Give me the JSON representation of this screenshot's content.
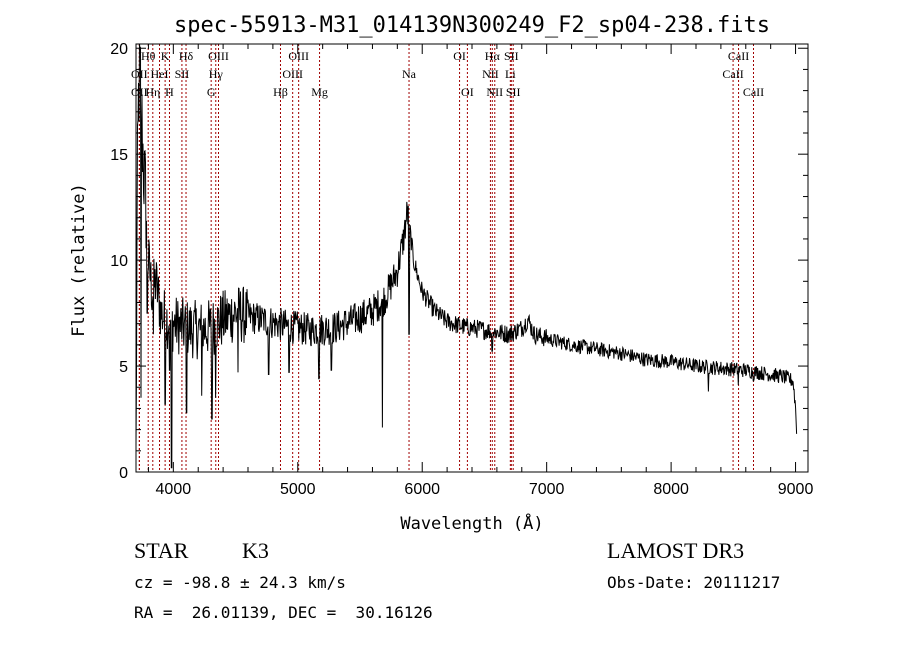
{
  "chart_data": {
    "type": "line",
    "title": "spec-55913-M31_014139N300249_F2_sp04-238.fits",
    "xlabel": "Wavelength (Å)",
    "ylabel": "Flux (relative)",
    "xlim": [
      3700,
      9100
    ],
    "ylim": [
      0,
      20.2
    ],
    "xticks": [
      4000,
      5000,
      6000,
      7000,
      8000,
      9000
    ],
    "yticks": [
      0,
      5,
      10,
      15,
      20
    ],
    "grid": false,
    "spectrum_anchors": [
      [
        3700,
        0.5
      ],
      [
        3710,
        13
      ],
      [
        3720,
        17.5
      ],
      [
        3730,
        19.2
      ],
      [
        3740,
        17.8
      ],
      [
        3750,
        16
      ],
      [
        3760,
        14.5
      ],
      [
        3780,
        12.5
      ],
      [
        3800,
        10
      ],
      [
        3830,
        8.5
      ],
      [
        3860,
        9
      ],
      [
        3900,
        7.5
      ],
      [
        3950,
        7.2
      ],
      [
        4000,
        7
      ],
      [
        4100,
        6.8
      ],
      [
        4200,
        6.7
      ],
      [
        4300,
        6.8
      ],
      [
        4400,
        7.2
      ],
      [
        4500,
        7.5
      ],
      [
        4700,
        7.2
      ],
      [
        4900,
        6.9
      ],
      [
        5100,
        6.7
      ],
      [
        5300,
        6.8
      ],
      [
        5500,
        7.3
      ],
      [
        5600,
        7.6
      ],
      [
        5700,
        8.2
      ],
      [
        5800,
        9.5
      ],
      [
        5850,
        11
      ],
      [
        5880,
        12.3
      ],
      [
        5900,
        11.5
      ],
      [
        5930,
        10
      ],
      [
        6000,
        8.5
      ],
      [
        6100,
        7.6
      ],
      [
        6200,
        7.1
      ],
      [
        6300,
        6.9
      ],
      [
        6400,
        6.8
      ],
      [
        6500,
        6.7
      ],
      [
        6600,
        6.6
      ],
      [
        6700,
        6.5
      ],
      [
        6800,
        6.8
      ],
      [
        6850,
        7.2
      ],
      [
        6900,
        6.5
      ],
      [
        7000,
        6.3
      ],
      [
        7200,
        6.0
      ],
      [
        7400,
        5.8
      ],
      [
        7600,
        5.6
      ],
      [
        7800,
        5.3
      ],
      [
        8000,
        5.2
      ],
      [
        8200,
        5.0
      ],
      [
        8400,
        4.9
      ],
      [
        8600,
        4.8
      ],
      [
        8800,
        4.6
      ],
      [
        8900,
        4.5
      ],
      [
        8980,
        4.3
      ],
      [
        9000,
        3.0
      ],
      [
        9010,
        1.5
      ]
    ],
    "spectrum_dips": [
      [
        3740,
        3.5
      ],
      [
        3790,
        7.5
      ],
      [
        3840,
        6.5
      ],
      [
        3935,
        3.2
      ],
      [
        3970,
        4.8
      ],
      [
        3985,
        0.2
      ],
      [
        4105,
        2.8
      ],
      [
        4228,
        3.6
      ],
      [
        4310,
        2.5
      ],
      [
        4340,
        3.5
      ],
      [
        4520,
        4.7
      ],
      [
        4765,
        4.6
      ],
      [
        4930,
        4.7
      ],
      [
        5170,
        4.4
      ],
      [
        5270,
        4.8
      ],
      [
        5680,
        2.1
      ],
      [
        5895,
        6.5
      ],
      [
        6563,
        5.7
      ],
      [
        8300,
        3.8
      ],
      [
        8540,
        4.1
      ],
      [
        8662,
        4.3
      ]
    ],
    "lines": [
      {
        "name": "OII",
        "wavelength": 3727,
        "row": 1
      },
      {
        "name": "Hθ",
        "wavelength": 3798,
        "row": 0
      },
      {
        "name": "OII",
        "wavelength": 3727,
        "row": 2
      },
      {
        "name": "Hη",
        "wavelength": 3835,
        "row": 2
      },
      {
        "name": "HeI",
        "wavelength": 3889,
        "row": 1
      },
      {
        "name": "K",
        "wavelength": 3934,
        "row": 0
      },
      {
        "name": "H",
        "wavelength": 3969,
        "row": 2
      },
      {
        "name": "SII",
        "wavelength": 4069,
        "row": 1
      },
      {
        "name": "Hδ",
        "wavelength": 4102,
        "row": 0
      },
      {
        "name": "G",
        "wavelength": 4304,
        "row": 2
      },
      {
        "name": "Hγ",
        "wavelength": 4341,
        "row": 1
      },
      {
        "name": "OIII",
        "wavelength": 4363,
        "row": 0
      },
      {
        "name": "Hβ",
        "wavelength": 4861,
        "row": 2
      },
      {
        "name": "OIII",
        "wavelength": 4959,
        "row": 1
      },
      {
        "name": "OIII",
        "wavelength": 5007,
        "row": 0
      },
      {
        "name": "Mg",
        "wavelength": 5175,
        "row": 2
      },
      {
        "name": "Na",
        "wavelength": 5894,
        "row": 1
      },
      {
        "name": "OI",
        "wavelength": 6300,
        "row": 0
      },
      {
        "name": "OI",
        "wavelength": 6363,
        "row": 2
      },
      {
        "name": "NII",
        "wavelength": 6548,
        "row": 1
      },
      {
        "name": "Hα",
        "wavelength": 6563,
        "row": 0
      },
      {
        "name": "NII",
        "wavelength": 6583,
        "row": 2
      },
      {
        "name": "SII",
        "wavelength": 6716,
        "row": 0
      },
      {
        "name": "Li",
        "wavelength": 6708,
        "row": 1
      },
      {
        "name": "SII",
        "wavelength": 6731,
        "row": 2
      },
      {
        "name": "CaII",
        "wavelength": 8498,
        "row": 1
      },
      {
        "name": "CaII",
        "wavelength": 8542,
        "row": 0
      },
      {
        "name": "CaII",
        "wavelength": 8662,
        "row": 2
      }
    ]
  },
  "info": {
    "object_class": "STAR",
    "subclass": "K3",
    "survey": "LAMOST DR3",
    "cz": "cz = -98.8 ± 24.3 km/s",
    "obs_date": "Obs-Date: 20111217",
    "radec": "RA =  26.01139, DEC =  30.16126"
  },
  "colors": {
    "line_marker": "#a00000",
    "spectrum": "#000000"
  }
}
